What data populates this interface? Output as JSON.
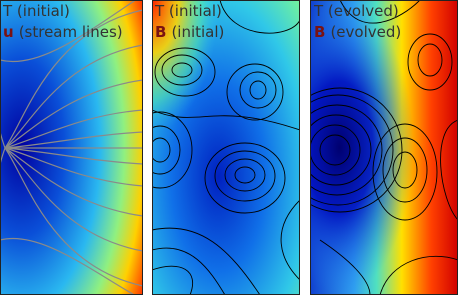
{
  "panels": [
    {
      "lines": [
        {
          "text": "T (initial)"
        },
        {
          "symbol": "u",
          "text": "(stream lines)"
        }
      ]
    },
    {
      "lines": [
        {
          "text": "T (initial)"
        },
        {
          "symbol": "B",
          "text": "(initial)"
        }
      ]
    },
    {
      "lines": [
        {
          "text": "T (evolved)"
        },
        {
          "symbol": "B",
          "text": "(evolved)"
        }
      ]
    }
  ]
}
